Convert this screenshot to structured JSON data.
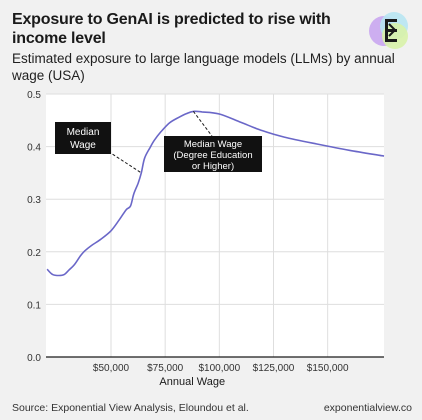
{
  "header": {
    "title": "Exposure to GenAI is predicted to rise with income level",
    "subtitle": "Estimated exposure to large language models (LLMs) by annual wage (USA)"
  },
  "footer": {
    "source": "Source: Exponential View Analysis, Eloundou et al.",
    "brand": "exponentialview.co"
  },
  "logo": {
    "icon": "exponential-view-logo",
    "colors": [
      "#c9a6f0",
      "#b8e6f2",
      "#d8f2a8",
      "#1a1a1a"
    ]
  },
  "chart_data": {
    "type": "line",
    "xlabel": "Annual Wage",
    "ylabel": "",
    "xlim": [
      20000,
      176000
    ],
    "ylim": [
      0,
      0.5
    ],
    "x_ticks": [
      50000,
      75000,
      100000,
      125000,
      150000
    ],
    "x_tick_labels": [
      "$50,000",
      "$75,000",
      "$100,000",
      "$125,000",
      "$150,000"
    ],
    "y_ticks": [
      0,
      0.1,
      0.2,
      0.3,
      0.4,
      0.5
    ],
    "y_tick_labels": [
      "0.0",
      "0.1",
      "0.2",
      "0.3",
      "0.4",
      "0.5"
    ],
    "grid": true,
    "line_color": "#6a67c8",
    "series": [
      {
        "x": [
          20500,
          23000,
          26000,
          28500,
          30500,
          33000,
          36000,
          38000,
          41000,
          45000,
          50000,
          54000,
          57000,
          59000,
          60500,
          62500,
          64000,
          65500,
          68000,
          70000,
          73000,
          77000,
          81000,
          85000,
          88000,
          92000,
          100000,
          110000,
          120000,
          130000,
          145000,
          160000,
          176000
        ],
        "y": [
          0.167,
          0.157,
          0.155,
          0.157,
          0.165,
          0.175,
          0.193,
          0.202,
          0.212,
          0.223,
          0.24,
          0.262,
          0.28,
          0.287,
          0.31,
          0.33,
          0.35,
          0.378,
          0.398,
          0.412,
          0.428,
          0.445,
          0.455,
          0.463,
          0.467,
          0.466,
          0.462,
          0.446,
          0.43,
          0.418,
          0.405,
          0.393,
          0.382
        ]
      }
    ],
    "annotations": [
      {
        "label": "Median Wage",
        "x": 64000,
        "y": 0.35
      },
      {
        "label": "Median Wage (Degree Education or Higher)",
        "x": 88000,
        "y": 0.467
      }
    ]
  }
}
